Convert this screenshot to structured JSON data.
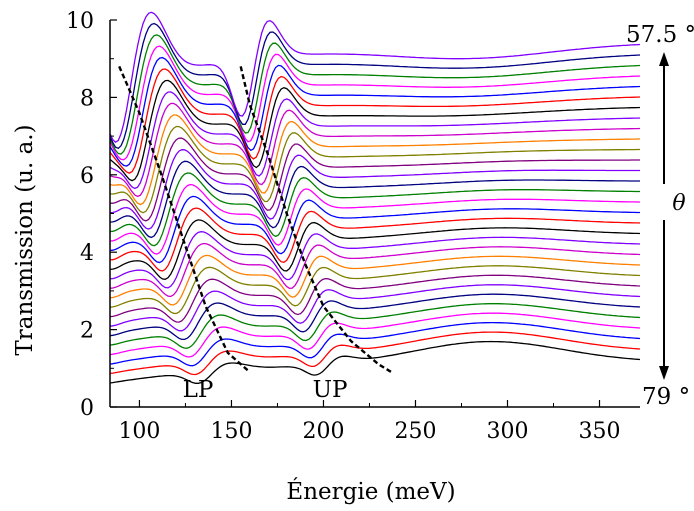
{
  "chart_data": {
    "type": "line",
    "title": "",
    "xlabel": "Énergie (meV)",
    "ylabel": "Transmission (u. a.)",
    "xlim": [
      84,
      372
    ],
    "ylim": [
      0,
      10
    ],
    "xticks": [
      100,
      150,
      200,
      250,
      300,
      350
    ],
    "yticks": [
      0,
      2,
      4,
      6,
      8,
      10
    ],
    "grid": false,
    "legend": "none",
    "curves": {
      "count": 31,
      "offset_start": 0.62,
      "offset_step": 0.252,
      "palette": [
        "#000000",
        "#ff0000",
        "#0000ff",
        "#ff00ff",
        "#008000",
        "#000080",
        "#8000ff",
        "#800080",
        "#808000",
        "#ff8000",
        "#cc00cc",
        "#8000ff"
      ]
    },
    "dispersion_lines": [
      {
        "name": "LP",
        "points": [
          [
            89,
            8.8
          ],
          [
            100,
            7.6
          ],
          [
            112,
            6.0
          ],
          [
            124,
            4.3
          ],
          [
            136,
            2.6
          ],
          [
            148,
            1.4
          ],
          [
            160,
            0.9
          ]
        ]
      },
      {
        "name": "UP",
        "points": [
          [
            155,
            8.8
          ],
          [
            160,
            7.8
          ],
          [
            170,
            6.5
          ],
          [
            180,
            5.0
          ],
          [
            190,
            3.7
          ],
          [
            200,
            2.6
          ],
          [
            215,
            1.7
          ],
          [
            230,
            1.1
          ],
          [
            237,
            0.9
          ]
        ]
      }
    ],
    "annotations": {
      "lp_label": "LP",
      "up_label": "UP",
      "angle_top": "57.5 °",
      "angle_bottom": "79 °",
      "theta": "θ"
    }
  }
}
